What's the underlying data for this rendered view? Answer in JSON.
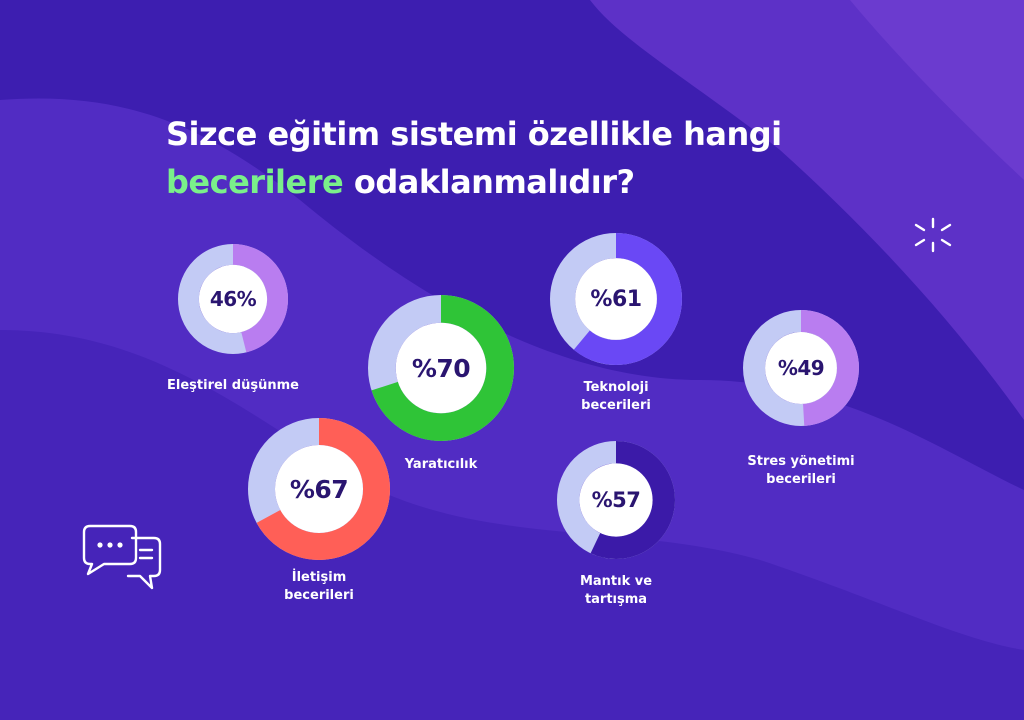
{
  "title": {
    "line1": "Sizce eğitim sistemi özellikle hangi",
    "line2_highlight": "becerilere",
    "line2_rest": " odaklanmalıdır?"
  },
  "colors": {
    "background": "#3d1eb0",
    "highlight": "#7af08a",
    "donut_track": "#c3cbf5",
    "value_text": "#2a1570"
  },
  "icons": [
    "sparkle-icon",
    "chat-bubbles-icon"
  ],
  "chart_data": {
    "type": "pie",
    "items": [
      {
        "label": "Eleştirel düşünme",
        "value": 46,
        "display": "46%",
        "color": "#b97df0"
      },
      {
        "label": "Yaratıcılık",
        "value": 70,
        "display": "%70",
        "color": "#2fc437"
      },
      {
        "label": "Teknoloji\nbecerileri",
        "value": 61,
        "display": "%61",
        "color": "#6a48f5"
      },
      {
        "label": "Stres yönetimi\nbecerileri",
        "value": 49,
        "display": "%49",
        "color": "#b97df0"
      },
      {
        "label": "İletişim\nbecerileri",
        "value": 67,
        "display": "%67",
        "color": "#ff5f57"
      },
      {
        "label": "Mantık ve\ntartışma",
        "value": 57,
        "display": "%57",
        "color": "#3b1aa8"
      }
    ]
  }
}
